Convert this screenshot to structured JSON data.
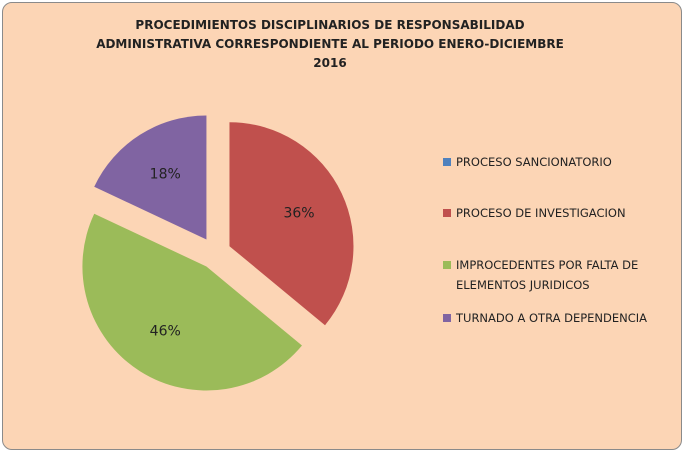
{
  "chart_data": {
    "type": "pie",
    "title": "PROCEDIMIENTOS DISCIPLINARIOS DE RESPONSABILIDAD ADMINISTRATIVA CORRESPONDIENTE AL PERIODO ENERO-DICIEMBRE 2016",
    "categories": [
      "PROCESO SANCIONATORIO",
      "PROCESO DE INVESTIGACION",
      "IMPROCEDENTES POR FALTA DE ELEMENTOS JURIDICOS",
      "TURNADO A OTRA DEPENDENCIA"
    ],
    "values": [
      0,
      36,
      46,
      18
    ],
    "value_labels": [
      null,
      "36%",
      "46%",
      "18%"
    ],
    "colors": [
      "#4f81bd",
      "#c0504d",
      "#9bbb59",
      "#8064a2"
    ],
    "legend": "right"
  }
}
